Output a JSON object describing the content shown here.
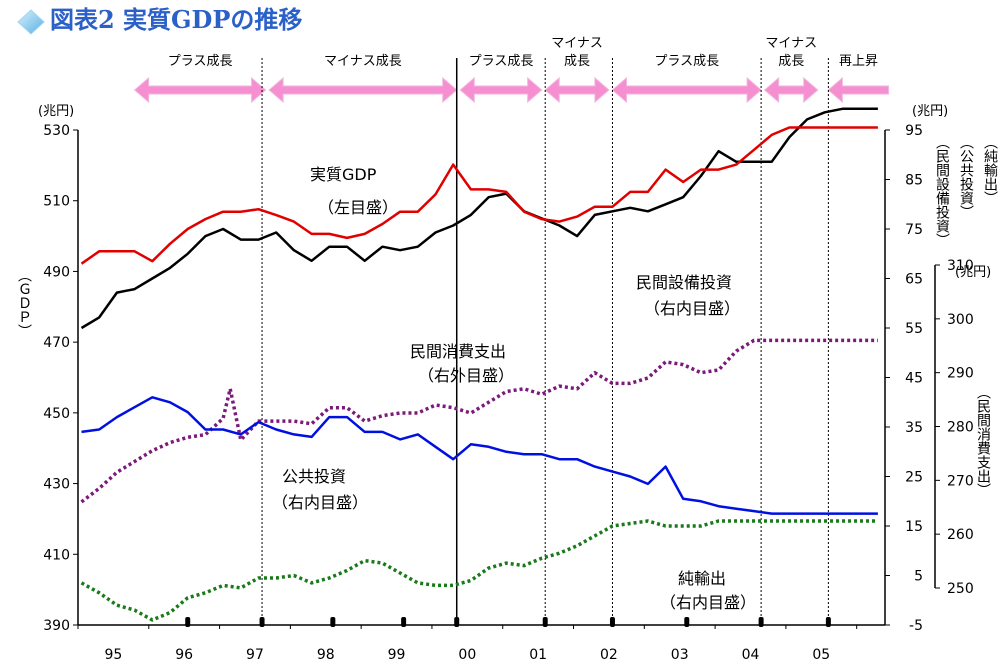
{
  "title": "図表2 実質GDPの推移",
  "colors": {
    "gdp": "#000000",
    "capex": "#e00000",
    "consumption": "#7b1a7b",
    "public": "#0010e0",
    "net_exports": "#1a7a1a",
    "arrow": "#f58fd0",
    "title": "#2a60c8"
  },
  "phases": [
    {
      "label": "プラス成長",
      "x0": 1994.8,
      "x1": 1996.65
    },
    {
      "label": "マイナス成長",
      "x0": 1996.7,
      "x1": 1999.35
    },
    {
      "label": "プラス成長",
      "x0": 1999.4,
      "x1": 2000.55
    },
    {
      "label": "マイナス\n成長",
      "x0": 2000.6,
      "x1": 2001.5
    },
    {
      "label": "プラス成長",
      "x0": 2001.55,
      "x1": 2003.65
    },
    {
      "label": "マイナス\n成長",
      "x0": 2003.7,
      "x1": 2004.45
    },
    {
      "label": "再上昇",
      "x0": 2004.6,
      "x1": 2005.45,
      "leftOnly": true
    }
  ],
  "boundaries": [
    {
      "x": 1996.6,
      "style": "dotted"
    },
    {
      "x": 1999.35,
      "style": "solid"
    },
    {
      "x": 2000.6,
      "style": "dotted"
    },
    {
      "x": 2001.55,
      "style": "dotted"
    },
    {
      "x": 2003.65,
      "style": "dotted"
    },
    {
      "x": 2004.6,
      "style": "dotted"
    }
  ],
  "annotations": {
    "gdp_name": "実質GDP",
    "gdp_axis": "（左目盛）",
    "capex_name": "民間設備投資",
    "capex_axis": "（右内目盛）",
    "cons_name": "民間消費支出",
    "cons_axis": "（右外目盛）",
    "pub_name": "公共投資",
    "pub_axis": "（右内目盛）",
    "nx_name": "純輸出",
    "nx_axis": "（右内目盛）"
  },
  "axis_texts": {
    "left_unit": "(兆円)",
    "inner_unit": "(兆円)",
    "outer_unit": "(兆円)",
    "left_label": "（ＧＤＰ）",
    "right_label_1": "（純輸出）",
    "right_label_2": "（公共投資）",
    "right_label_3": "（民間設備投資）",
    "right_label_4": "（民間消費支出）"
  },
  "chart_data": {
    "type": "line",
    "title": "図表2 実質GDPの推移",
    "x_ticks": [
      "95",
      "96",
      "97",
      "98",
      "99",
      "00",
      "01",
      "02",
      "03",
      "04",
      "05"
    ],
    "axes": {
      "left": {
        "min": 390,
        "max": 530,
        "ticks": [
          390,
          410,
          430,
          450,
          470,
          490,
          510,
          530
        ]
      },
      "right_inner": {
        "min": -5,
        "max": 95,
        "ticks": [
          -5,
          5,
          15,
          25,
          35,
          45,
          55,
          65,
          75,
          85,
          95
        ]
      },
      "right_outer": {
        "min": 250,
        "max": 310,
        "ticks": [
          250,
          260,
          270,
          280,
          290,
          300,
          310
        ]
      }
    },
    "series": [
      {
        "name": "実質GDP",
        "key": "gdp",
        "axis": "left",
        "style": "solid",
        "x": [
          1994.05,
          1994.3,
          1994.55,
          1994.8,
          1995.05,
          1995.3,
          1995.55,
          1995.8,
          1996.05,
          1996.3,
          1996.55,
          1996.8,
          1997.05,
          1997.3,
          1997.55,
          1997.8,
          1998.05,
          1998.3,
          1998.55,
          1998.8,
          1999.05,
          1999.3,
          1999.55,
          1999.8,
          2000.05,
          2000.3,
          2000.55,
          2000.8,
          2001.05,
          2001.3,
          2001.55,
          2001.8,
          2002.05,
          2002.3,
          2002.55,
          2002.8,
          2003.05,
          2003.3,
          2003.55,
          2003.8,
          2004.05,
          2004.3,
          2004.55,
          2004.8,
          2005.05,
          2005.3
        ],
        "values": [
          474,
          477,
          484,
          485,
          488,
          491,
          495,
          500,
          502,
          499,
          499,
          501,
          496,
          493,
          497,
          497,
          493,
          497,
          496,
          497,
          501,
          503,
          506,
          511,
          512,
          507,
          505,
          503,
          500,
          506,
          507,
          508,
          507,
          509,
          511,
          517,
          524,
          521,
          521,
          521,
          528,
          533,
          535,
          536,
          536,
          536
        ]
      },
      {
        "name": "民間設備投資",
        "key": "capex",
        "axis": "right_inner",
        "style": "solid",
        "x": [
          1994.05,
          1994.3,
          1994.55,
          1994.8,
          1995.05,
          1995.3,
          1995.55,
          1995.8,
          1996.05,
          1996.3,
          1996.55,
          1996.8,
          1997.05,
          1997.3,
          1997.55,
          1997.8,
          1998.05,
          1998.3,
          1998.55,
          1998.8,
          1999.05,
          1999.3,
          1999.55,
          1999.8,
          2000.05,
          2000.3,
          2000.55,
          2000.8,
          2001.05,
          2001.3,
          2001.55,
          2001.8,
          2002.05,
          2002.3,
          2002.55,
          2002.8,
          2003.05,
          2003.3,
          2003.55,
          2003.8,
          2004.05,
          2004.3,
          2004.55,
          2004.8,
          2005.05,
          2005.3
        ],
        "values": [
          68,
          70.5,
          70.5,
          70.5,
          68.5,
          72,
          75,
          77,
          78.5,
          78.5,
          79,
          77.8,
          76.5,
          74,
          74,
          73.2,
          74,
          76,
          78.5,
          78.5,
          82,
          88,
          83,
          83,
          82.5,
          78.5,
          77,
          76.5,
          77.5,
          79.5,
          79.5,
          82.5,
          82.5,
          87,
          84.5,
          87,
          87,
          88,
          91,
          94,
          95.5,
          95.5,
          95.5,
          95.5,
          95.5,
          95.5
        ]
      },
      {
        "name": "民間消費支出",
        "key": "consumption",
        "axis": "right_outer",
        "style": "dotted",
        "x": [
          1994.05,
          1994.3,
          1994.55,
          1994.8,
          1995.05,
          1995.3,
          1995.55,
          1995.8,
          1996.05,
          1996.15,
          1996.3,
          1996.55,
          1996.8,
          1997.05,
          1997.3,
          1997.55,
          1997.8,
          1998.05,
          1998.3,
          1998.55,
          1998.8,
          1999.05,
          1999.3,
          1999.55,
          1999.8,
          2000.05,
          2000.3,
          2000.55,
          2000.8,
          2001.05,
          2001.3,
          2001.55,
          2001.8,
          2002.05,
          2002.3,
          2002.55,
          2002.8,
          2003.05,
          2003.3,
          2003.55,
          2003.8,
          2004.05,
          2004.3,
          2004.55,
          2004.8,
          2005.05,
          2005.3
        ],
        "values": [
          266,
          268.5,
          271.5,
          273.5,
          275.5,
          277,
          278,
          278.5,
          281.5,
          287,
          277.5,
          281,
          281,
          281,
          280.5,
          283.5,
          283.5,
          281,
          282,
          282.5,
          282.5,
          284,
          283.5,
          282.5,
          284.5,
          286.5,
          287,
          286,
          287.5,
          287,
          290,
          288,
          288,
          289,
          292,
          291.5,
          290,
          290.5,
          294,
          296,
          296,
          296,
          296,
          296,
          296,
          296,
          296
        ]
      },
      {
        "name": "公共投資",
        "key": "public",
        "axis": "right_inner",
        "style": "solid",
        "x": [
          1994.05,
          1994.3,
          1994.55,
          1994.8,
          1995.05,
          1995.3,
          1995.55,
          1995.8,
          1996.05,
          1996.3,
          1996.55,
          1996.8,
          1997.05,
          1997.3,
          1997.55,
          1997.8,
          1998.05,
          1998.3,
          1998.55,
          1998.8,
          1999.05,
          1999.3,
          1999.55,
          1999.8,
          2000.05,
          2000.3,
          2000.55,
          2000.8,
          2001.05,
          2001.3,
          2001.55,
          2001.8,
          2002.05,
          2002.3,
          2002.55,
          2002.8,
          2003.05,
          2003.3,
          2003.55,
          2003.8,
          2004.05,
          2004.3,
          2004.55,
          2004.8,
          2005.05,
          2005.3
        ],
        "values": [
          34,
          34.5,
          37,
          39,
          41,
          40,
          38,
          34.5,
          34.5,
          33.5,
          36,
          34.5,
          33.5,
          33,
          37,
          37,
          34,
          34,
          32.5,
          33.5,
          31,
          28.5,
          31.5,
          31,
          30,
          29.5,
          29.5,
          28.5,
          28.5,
          27,
          26,
          25,
          23.5,
          27,
          20.5,
          20,
          19,
          18.5,
          18,
          17.5,
          17.5,
          17.5,
          17.5,
          17.5,
          17.5,
          17.5
        ]
      },
      {
        "name": "純輸出",
        "key": "net_exports",
        "axis": "right_inner",
        "style": "dotted",
        "x": [
          1994.05,
          1994.3,
          1994.55,
          1994.8,
          1995.05,
          1995.3,
          1995.55,
          1995.8,
          1996.05,
          1996.3,
          1996.55,
          1996.8,
          1997.05,
          1997.3,
          1997.55,
          1997.8,
          1998.05,
          1998.3,
          1998.55,
          1998.8,
          1999.05,
          1999.3,
          1999.55,
          1999.8,
          2000.05,
          2000.3,
          2000.55,
          2000.8,
          2001.05,
          2001.3,
          2001.55,
          2001.8,
          2002.05,
          2002.3,
          2002.55,
          2002.8,
          2003.05,
          2003.3,
          2003.55,
          2003.8,
          2004.05,
          2004.3,
          2004.55,
          2004.8,
          2005.05,
          2005.3
        ],
        "values": [
          3.5,
          1.5,
          -1,
          -2,
          -4,
          -2.5,
          0.5,
          1.5,
          3,
          2.5,
          4.5,
          4.5,
          5,
          3.5,
          4.5,
          6,
          8,
          7.5,
          5.5,
          3.5,
          3,
          3,
          4,
          6.5,
          7.5,
          7,
          8.5,
          9.5,
          11,
          13,
          15,
          15.5,
          16,
          15,
          15,
          15,
          16,
          16,
          16,
          16,
          16,
          16,
          16,
          16,
          16,
          16
        ]
      }
    ]
  }
}
